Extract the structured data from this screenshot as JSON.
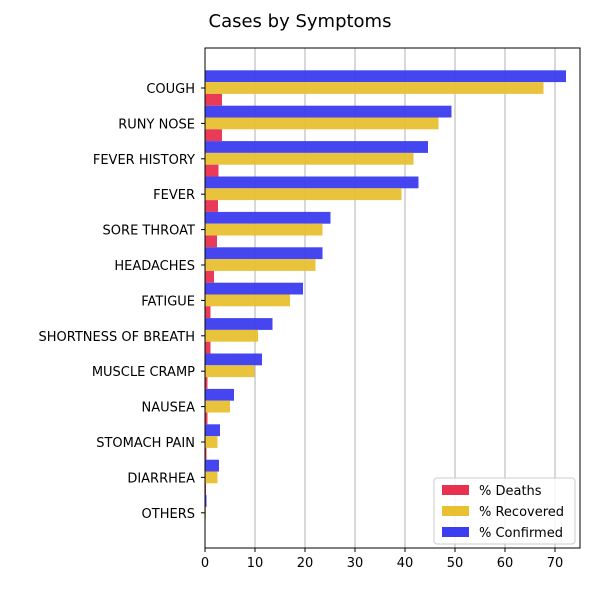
{
  "chart_data": {
    "type": "bar",
    "orientation": "horizontal",
    "title": "Cases by Symptoms",
    "xlabel": "",
    "ylabel": "",
    "xlim": [
      0,
      75
    ],
    "xticks": [
      0,
      10,
      20,
      30,
      40,
      50,
      60,
      70
    ],
    "grid": "x",
    "legend_position": "lower-right",
    "categories": [
      "COUGH",
      "RUNY NOSE",
      "FEVER HISTORY",
      "FEVER",
      "SORE THROAT",
      "HEADACHES",
      "FATIGUE",
      "SHORTNESS OF BREATH",
      "MUSCLE CRAMP",
      "NAUSEA",
      "STOMACH PAIN",
      "DIARRHEA",
      "OTHERS"
    ],
    "series": [
      {
        "name": "% Deaths",
        "color": "#e8304f",
        "values": [
          3.4,
          3.4,
          2.7,
          2.6,
          2.4,
          1.8,
          1.1,
          1.1,
          0.5,
          0.5,
          0.3,
          0.2,
          0.1
        ]
      },
      {
        "name": "% Recovered",
        "color": "#e8c030",
        "values": [
          67.7,
          46.7,
          41.7,
          39.3,
          23.5,
          22.1,
          17.0,
          10.6,
          9.9,
          5.0,
          2.5,
          2.5,
          0.2
        ]
      },
      {
        "name": "% Confirmed",
        "color": "#3c3cf0",
        "values": [
          72.2,
          49.3,
          44.6,
          42.7,
          25.1,
          23.5,
          19.6,
          13.5,
          11.4,
          5.8,
          3.0,
          2.8,
          0.3
        ]
      }
    ]
  }
}
